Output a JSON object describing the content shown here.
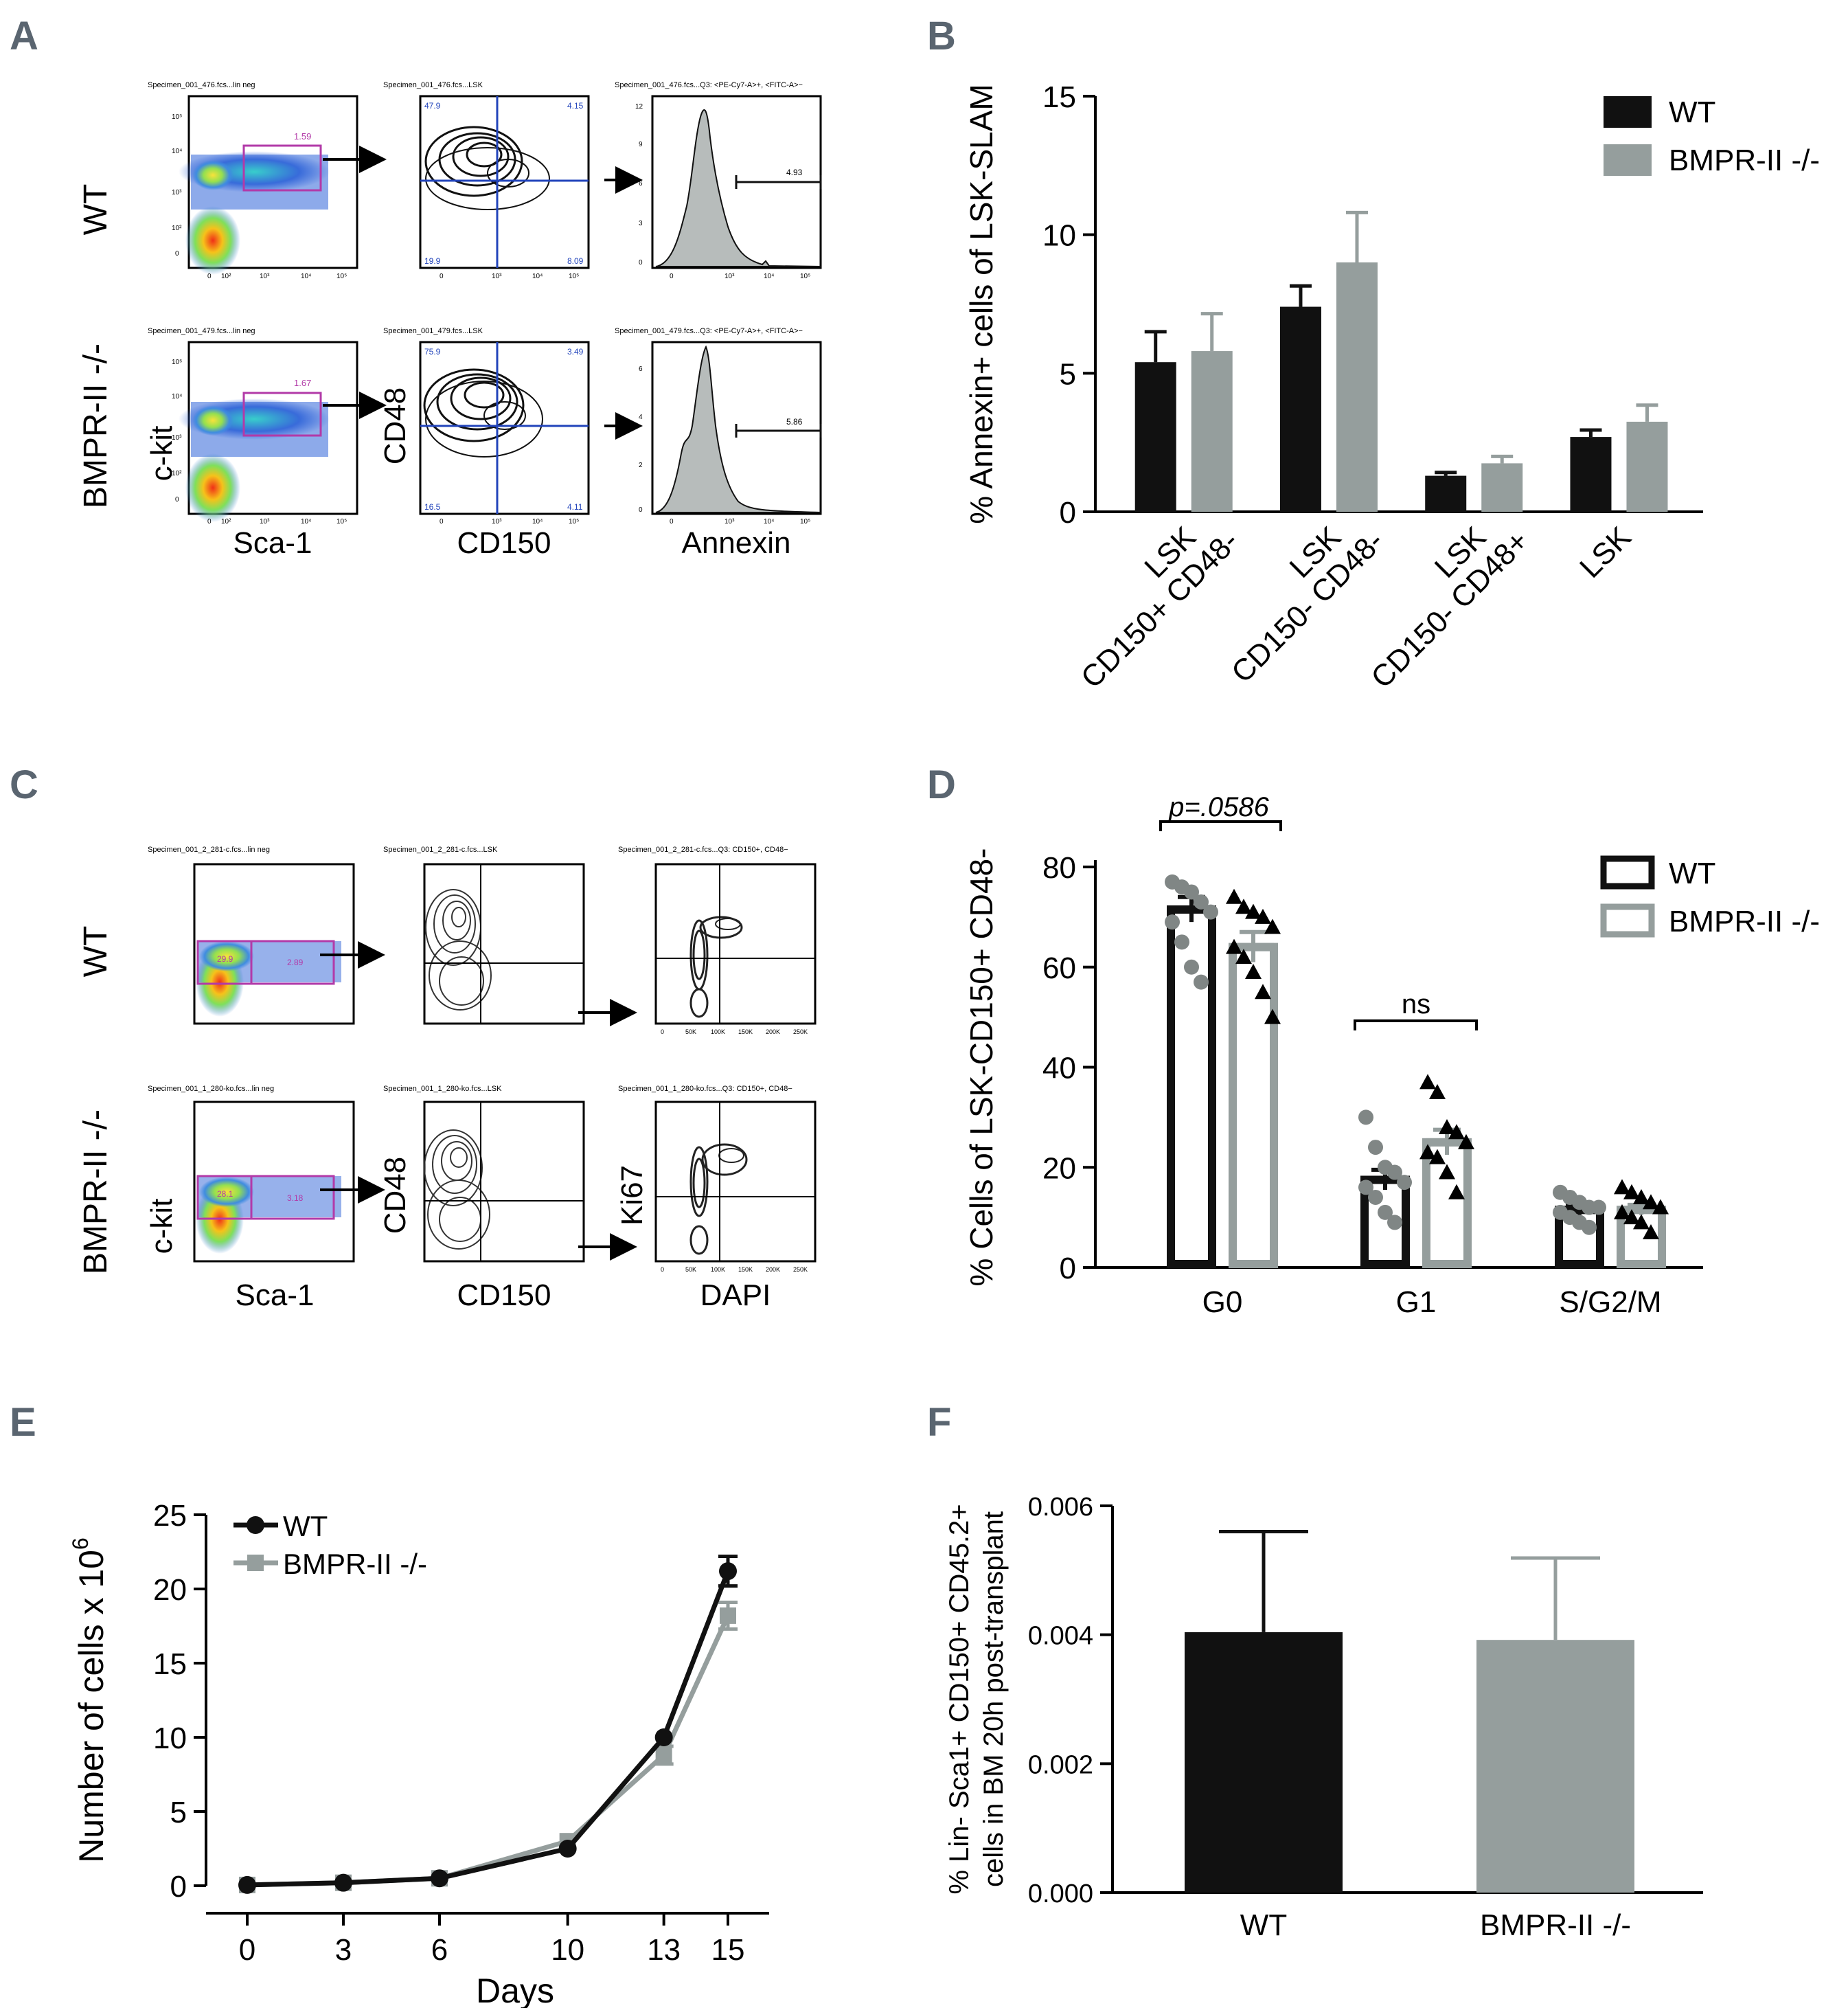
{
  "colors": {
    "wt": "#111111",
    "ko": "#959e9d",
    "gate": "#b23aa8",
    "quad_blue": "#2244bb",
    "panel_label": "#5a6570",
    "hist_fill": "#b7bcbb"
  },
  "panels": {
    "A": {
      "label": "A",
      "rows": [
        {
          "name": "WT",
          "headers": [
            "Specimen_001_476.fcs...lin neg",
            "Specimen_001_476.fcs...LSK",
            "Specimen_001_476.fcs...Q3: <PE-Cy7-A>+, <FITC-A>−"
          ],
          "gate_value": "1.59",
          "quadrants": {
            "ul": "47.9",
            "ur": "4.15",
            "ll": "19.9",
            "lr": "8.09"
          },
          "hist_value": "4.93"
        },
        {
          "name": "BMPR-II -/-",
          "headers": [
            "Specimen_001_479.fcs...lin neg",
            "Specimen_001_479.fcs...LSK",
            "Specimen_001_479.fcs...Q3: <PE-Cy7-A>+, <FITC-A>−"
          ],
          "gate_value": "1.67",
          "quadrants": {
            "ul": "75.9",
            "ur": "3.49",
            "ll": "16.5",
            "lr": "4.11"
          },
          "hist_value": "5.86"
        }
      ],
      "x_titles": [
        "Sca-1",
        "CD150",
        "Annexin"
      ],
      "y_titles": [
        "c-kit",
        "CD48"
      ],
      "log_ticks_y": [
        "10⁵",
        "10⁴",
        "10³",
        "10²",
        "0"
      ],
      "log_ticks_x": [
        "0",
        "10²",
        "10³",
        "10⁴",
        "10⁵"
      ],
      "hist_ticks_wt": [
        "12",
        "9",
        "6",
        "3",
        "0"
      ],
      "hist_ticks_ko": [
        "6",
        "4",
        "2",
        "0"
      ]
    },
    "C": {
      "label": "C",
      "rows": [
        {
          "name": "WT",
          "headers": [
            "Specimen_001_2_281-c.fcs...lin neg",
            "Specimen_001_2_281-c.fcs...LSK",
            "Specimen_001_2_281-c.fcs...Q3: CD150+, CD48−"
          ],
          "gate_values": [
            "29.9",
            "2.89"
          ]
        },
        {
          "name": "BMPR-II -/-",
          "headers": [
            "Specimen_001_1_280-ko.fcs...lin neg",
            "Specimen_001_1_280-ko.fcs...LSK",
            "Specimen_001_1_280-ko.fcs...Q3: CD150+, CD48−"
          ],
          "gate_values": [
            "28.1",
            "3.18"
          ]
        }
      ],
      "x_titles": [
        "Sca-1",
        "CD150",
        "DAPI"
      ],
      "y_titles": [
        "c-kit",
        "CD48",
        "Ki67"
      ],
      "linear_ticks_x": [
        "0",
        "50K",
        "100K",
        "150K",
        "200K",
        "250K"
      ]
    },
    "D": {
      "label": "D",
      "sig_labels": [
        "p=.0586",
        "ns"
      ]
    },
    "E": {
      "label": "E"
    },
    "F": {
      "label": "F"
    }
  },
  "chart_data": [
    {
      "id": "B",
      "type": "bar",
      "title": "",
      "ylabel": "% Annexin+ cells of LSK-SLAM",
      "xlabel": "",
      "ylim": [
        0,
        15
      ],
      "yticks": [
        "0",
        "5",
        "10",
        "15"
      ],
      "categories": [
        {
          "line1": "LSK",
          "line2": "CD150+ CD48-"
        },
        {
          "line1": "LSK",
          "line2": "CD150- CD48-"
        },
        {
          "line1": "LSK",
          "line2": "CD150- CD48+"
        },
        {
          "line1": "",
          "line2": "LSK"
        }
      ],
      "series": [
        {
          "name": "WT",
          "values": [
            5.4,
            7.4,
            1.3,
            2.7
          ],
          "errors": [
            1.1,
            0.75,
            0.12,
            0.25
          ]
        },
        {
          "name": "BMPR-II -/-",
          "values": [
            5.8,
            9.0,
            1.75,
            3.25
          ],
          "errors": [
            1.35,
            1.8,
            0.25,
            0.6
          ]
        }
      ],
      "legend": "top-right"
    },
    {
      "id": "D",
      "type": "bar",
      "title": "",
      "ylabel": "% Cells of LSK-CD150+ CD48-",
      "xlabel": "",
      "ylim": [
        0,
        80
      ],
      "yticks": [
        "0",
        "20",
        "40",
        "60",
        "80"
      ],
      "categories": [
        "G0",
        "G1",
        "S/G2/M"
      ],
      "series": [
        {
          "name": "WT",
          "values": [
            71.5,
            17.5,
            11.5
          ],
          "errors": [
            2.5,
            2.0,
            1.0
          ],
          "points": [
            [
              77,
              76,
              75,
              73,
              71,
              69,
              65,
              60,
              57
            ],
            [
              30,
              24,
              20,
              19,
              17,
              16,
              14,
              11,
              9
            ],
            [
              15,
              14,
              13,
              12,
              12,
              11,
              10,
              9,
              8
            ]
          ]
        },
        {
          "name": "BMPR-II -/-",
          "values": [
            64,
            25,
            11.5
          ],
          "errors": [
            3.0,
            2.5,
            1.0
          ],
          "points": [
            [
              74,
              72,
              71,
              70,
              68,
              64,
              62,
              59,
              55,
              50
            ],
            [
              37,
              35,
              28,
              27,
              25,
              23,
              22,
              19,
              15
            ],
            [
              16,
              15,
              14,
              13,
              12,
              11,
              10,
              9,
              7
            ]
          ]
        }
      ],
      "legend": "top-right"
    },
    {
      "id": "E",
      "type": "line",
      "title": "",
      "ylabel": "Number of cells x 10",
      "ylabel_sup": "6",
      "xlabel": "Days",
      "x": [
        0,
        3,
        6,
        10,
        13,
        15
      ],
      "xticks": [
        "0",
        "3",
        "6",
        "10",
        "13",
        "15"
      ],
      "ylim": [
        0,
        25
      ],
      "yticks": [
        "0",
        "5",
        "10",
        "15",
        "20",
        "25"
      ],
      "series": [
        {
          "name": "WT",
          "marker": "circle",
          "values": [
            0.05,
            0.2,
            0.5,
            2.5,
            10.0,
            21.2
          ],
          "errors": [
            0,
            0,
            0,
            0,
            0,
            1.0
          ]
        },
        {
          "name": "BMPR-II -/-",
          "marker": "square",
          "values": [
            0.05,
            0.2,
            0.5,
            3.0,
            8.8,
            18.2
          ],
          "errors": [
            0,
            0,
            0,
            0,
            0.6,
            0.9
          ]
        }
      ],
      "legend": "top-left"
    },
    {
      "id": "F",
      "type": "bar",
      "title": "",
      "ylabel_lines": [
        "% Lin- Sca1+ CD150+ CD45.2+",
        "cells in BM 20h post-transplant"
      ],
      "xlabel": "",
      "categories": [
        "WT",
        "BMPR-II -/-"
      ],
      "values": [
        0.00404,
        0.00392
      ],
      "errors": [
        0.00156,
        0.00127
      ],
      "ylim": [
        0,
        0.006
      ],
      "yticks": [
        "0.000",
        "0.002",
        "0.004",
        "0.006"
      ]
    }
  ]
}
